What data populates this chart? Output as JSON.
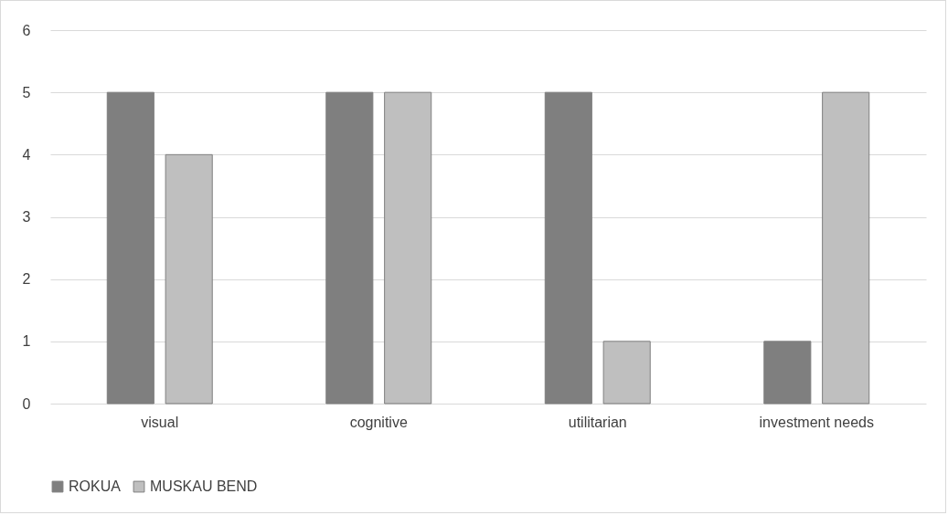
{
  "chart_data": {
    "type": "bar",
    "categories": [
      "visual",
      "cognitive",
      "utilitarian",
      "investment needs"
    ],
    "series": [
      {
        "name": "ROKUA",
        "color": "#7f7f7f",
        "values": [
          5,
          5,
          5,
          1
        ]
      },
      {
        "name": "MUSKAU BEND",
        "color": "#bfbfbf",
        "values": [
          4,
          5,
          1,
          5
        ]
      }
    ],
    "ylim": [
      0,
      6
    ],
    "yticks": [
      0,
      1,
      2,
      3,
      4,
      5,
      6
    ],
    "grid": "y",
    "legend": "bottom"
  }
}
